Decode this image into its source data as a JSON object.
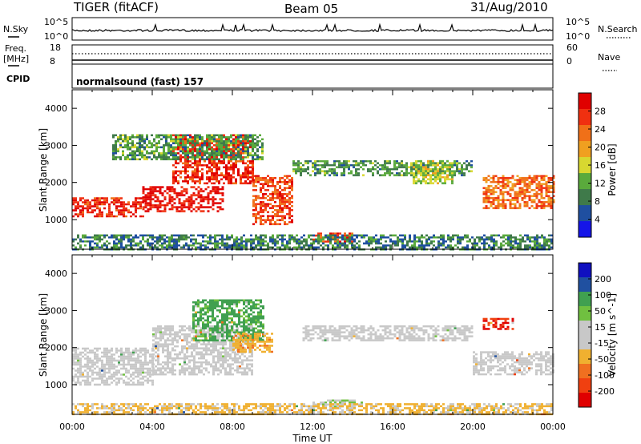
{
  "header": {
    "station": "TIGER (fitACF)",
    "beam": "Beam 05",
    "date": "31/Aug/2010"
  },
  "strips": {
    "nsky_label": "N.Sky",
    "nsky_ticks": [
      "10^5",
      "10^0"
    ],
    "nsearch_label": "N.Search",
    "freq_label": "Freq.",
    "freq_unit": "[MHz]",
    "freq_ticks": [
      "18",
      "8"
    ],
    "nave_label": "Nave",
    "nave_ticks": [
      "60",
      "0"
    ],
    "cpid_label": "CPID",
    "cpid_value": "normalsound (fast) 157"
  },
  "colors": {
    "power_scale": [
      "#1515e8",
      "#1f4fa0",
      "#3f7a4a",
      "#5aaa3c",
      "#d8d830",
      "#f0a020",
      "#f07018",
      "#f03010",
      "#e00000"
    ],
    "velocity_scale": [
      "#e00000",
      "#f04010",
      "#f07020",
      "#f0b030",
      "#c8c8c8",
      "#c8c8c8",
      "#70c040",
      "#40a050",
      "#2050a0",
      "#1010c0"
    ]
  },
  "chart_data": [
    {
      "type": "heatmap",
      "title": "",
      "xlabel": "",
      "ylabel": "Slant Range [km]",
      "x_ticks": [
        "00:00",
        "04:00",
        "08:00",
        "12:00",
        "16:00",
        "20:00",
        "00:00"
      ],
      "y_ticks": [
        "1000",
        "2000",
        "3000",
        "4000"
      ],
      "ylim": [
        200,
        4500
      ],
      "colorbar": {
        "label": "Power [dB]",
        "ticks": [
          "4",
          "8",
          "12",
          "16",
          "20",
          "24",
          "28"
        ],
        "range": [
          0,
          30
        ]
      },
      "echo_regions": [
        {
          "t": [
            0.0,
            3.5
          ],
          "range_km": [
            1100,
            1600
          ],
          "power_db": 26
        },
        {
          "t": [
            3.5,
            7.5
          ],
          "range_km": [
            1200,
            1900
          ],
          "power_db": 28
        },
        {
          "t": [
            5.0,
            9.0
          ],
          "range_km": [
            2000,
            3300
          ],
          "power_db": 26
        },
        {
          "t": [
            9.0,
            11.0
          ],
          "range_km": [
            900,
            2200
          ],
          "power_db": 24
        },
        {
          "t": [
            2.0,
            9.5
          ],
          "range_km": [
            2600,
            3300
          ],
          "power_db": 10
        },
        {
          "t": [
            12.0,
            14.0
          ],
          "range_km": [
            400,
            650
          ],
          "power_db": 24
        },
        {
          "t": [
            11.0,
            20.0
          ],
          "range_km": [
            2200,
            2600
          ],
          "power_db": 10
        },
        {
          "t": [
            17.0,
            19.0
          ],
          "range_km": [
            2000,
            2600
          ],
          "power_db": 14
        },
        {
          "t": [
            20.5,
            24.0
          ],
          "range_km": [
            1300,
            2200
          ],
          "power_db": 22
        },
        {
          "t": [
            0.0,
            24.0
          ],
          "range_km": [
            200,
            600
          ],
          "power_db": 8
        }
      ]
    },
    {
      "type": "heatmap",
      "title": "",
      "xlabel": "Time UT",
      "ylabel": "Slant Range [km]",
      "x_ticks": [
        "00:00",
        "04:00",
        "08:00",
        "12:00",
        "16:00",
        "20:00",
        "00:00"
      ],
      "y_ticks": [
        "1000",
        "2000",
        "3000",
        "4000"
      ],
      "ylim": [
        200,
        4500
      ],
      "colorbar": {
        "label": "Velocity [m s^-1]",
        "ticks": [
          "200",
          "100",
          "50",
          "15",
          "-15",
          "-50",
          "-100",
          "-200"
        ],
        "range": [
          -250,
          250
        ]
      },
      "echo_regions": [
        {
          "t": [
            0.0,
            4.0
          ],
          "range_km": [
            1000,
            2000
          ],
          "velocity": 0
        },
        {
          "t": [
            4.0,
            9.0
          ],
          "range_km": [
            1300,
            2600
          ],
          "velocity": 0
        },
        {
          "t": [
            6.0,
            9.5
          ],
          "range_km": [
            2200,
            3300
          ],
          "velocity": 120
        },
        {
          "t": [
            8.0,
            10.0
          ],
          "range_km": [
            1900,
            2400
          ],
          "velocity": -80
        },
        {
          "t": [
            12.0,
            14.5
          ],
          "range_km": [
            400,
            600
          ],
          "velocity": 40
        },
        {
          "t": [
            11.5,
            20.0
          ],
          "range_km": [
            2200,
            2600
          ],
          "velocity": 0
        },
        {
          "t": [
            20.5,
            22.0
          ],
          "range_km": [
            2500,
            2800
          ],
          "velocity": -200
        },
        {
          "t": [
            20.0,
            24.0
          ],
          "range_km": [
            1300,
            1900
          ],
          "velocity": 0
        },
        {
          "t": [
            0.0,
            24.0
          ],
          "range_km": [
            200,
            500
          ],
          "velocity": -60
        }
      ]
    }
  ]
}
